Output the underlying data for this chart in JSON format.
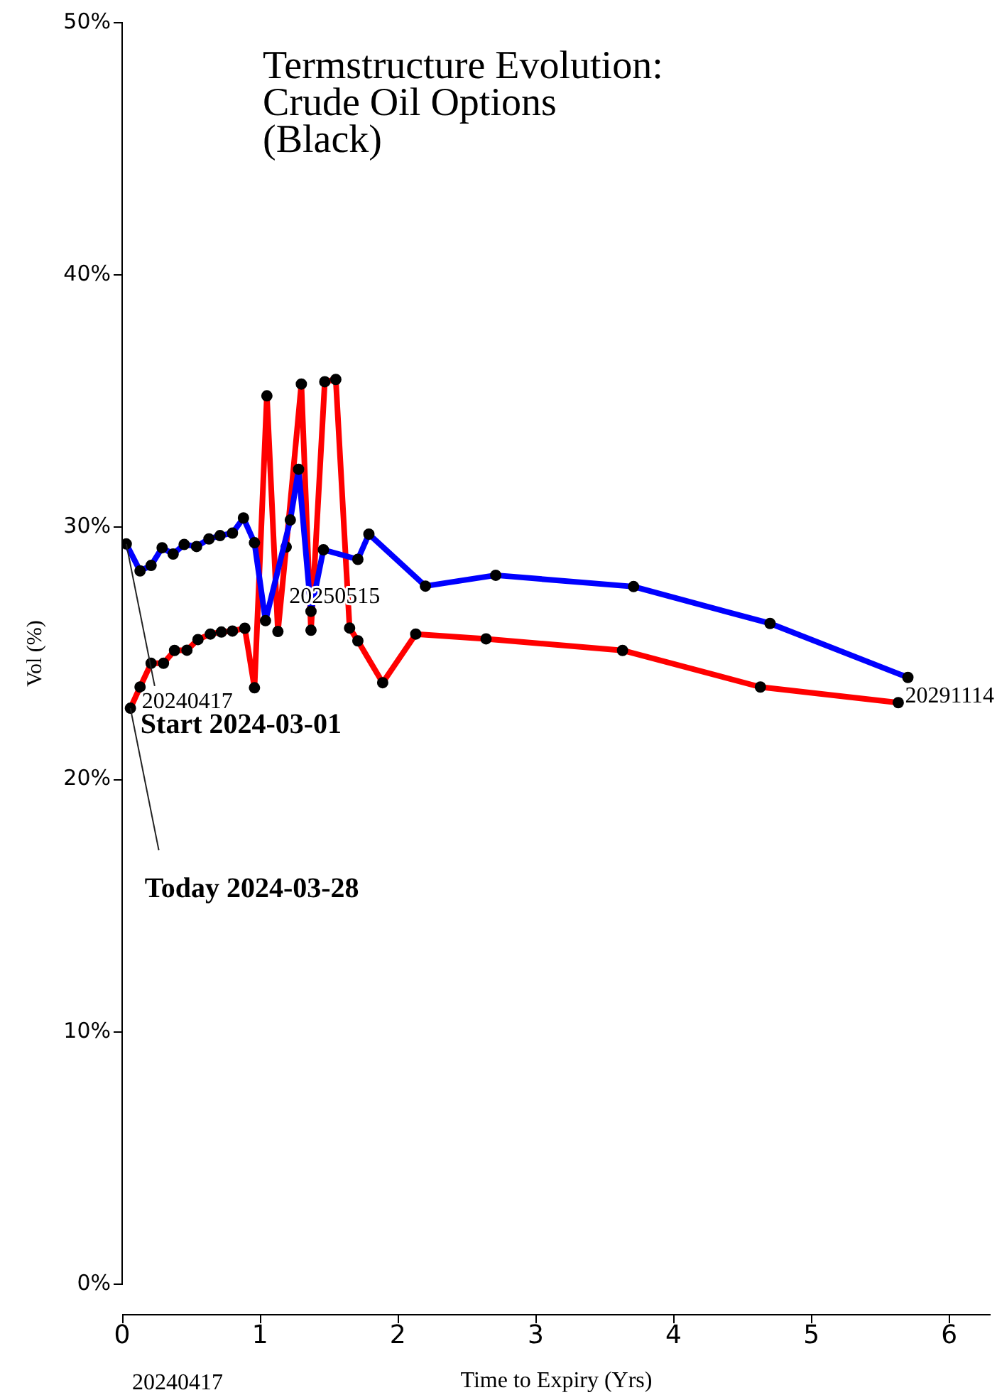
{
  "chart_data": {
    "type": "line",
    "title": "Termstructure Evolution:\nCrude Oil Options\n(Black)",
    "xlabel": "Time to Expiry (Yrs)",
    "ylabel": "Vol (%)",
    "series": [
      {
        "name": "Start 2024-03-01",
        "color": "#0000ff",
        "x": [
          0.03,
          0.13,
          0.21,
          0.29,
          0.37,
          0.45,
          0.54,
          0.63,
          0.71,
          0.8,
          0.88,
          0.96,
          1.04,
          1.22,
          1.28,
          1.37,
          1.46,
          1.71,
          1.79,
          2.2,
          2.71,
          3.71,
          4.7,
          5.7
        ],
        "values": [
          29.34,
          28.27,
          28.49,
          29.19,
          28.94,
          29.32,
          29.24,
          29.54,
          29.67,
          29.77,
          30.37,
          29.39,
          26.3,
          30.29,
          32.3,
          26.67,
          29.11,
          28.73,
          29.73,
          27.67,
          28.1,
          27.65,
          26.19,
          24.05
        ]
      },
      {
        "name": "Today 2024-03-28",
        "color": "#ff0000",
        "x": [
          0.06,
          0.13,
          0.21,
          0.3,
          0.38,
          0.47,
          0.55,
          0.64,
          0.72,
          0.8,
          0.89,
          0.96,
          1.05,
          1.13,
          1.19,
          1.3,
          1.37,
          1.47,
          1.55,
          1.65,
          1.71,
          1.89,
          2.13,
          2.64,
          3.63,
          4.63,
          5.63
        ],
        "values": [
          22.83,
          23.67,
          24.61,
          24.61,
          25.12,
          25.13,
          25.55,
          25.77,
          25.85,
          25.89,
          26.0,
          23.64,
          35.21,
          25.87,
          29.22,
          35.68,
          25.92,
          35.77,
          35.86,
          26.01,
          25.5,
          23.84,
          25.77,
          25.58,
          25.12,
          23.67,
          23.05
        ]
      }
    ],
    "xlim": [
      0,
      6.3
    ],
    "xticks": [
      0,
      1,
      2,
      3,
      4,
      5,
      6
    ],
    "ylim": [
      0,
      50
    ],
    "yticks": [
      {
        "value": 0,
        "label": "0%"
      },
      {
        "value": 10,
        "label": "10%"
      },
      {
        "value": 20,
        "label": "20%"
      },
      {
        "value": 30,
        "label": "30%"
      },
      {
        "value": 40,
        "label": "40%"
      },
      {
        "value": 50,
        "label": "50%"
      }
    ],
    "legend": false,
    "marker": "circle",
    "line_style": "solid",
    "annotations": [
      {
        "text": "20240417",
        "x": 0.06,
        "y": 22.83
      },
      {
        "text": "20250515",
        "x": 1.13,
        "y": 25.87
      },
      {
        "text": "20291114",
        "x": 5.63,
        "y": 23.05
      },
      "20240417"
    ]
  }
}
